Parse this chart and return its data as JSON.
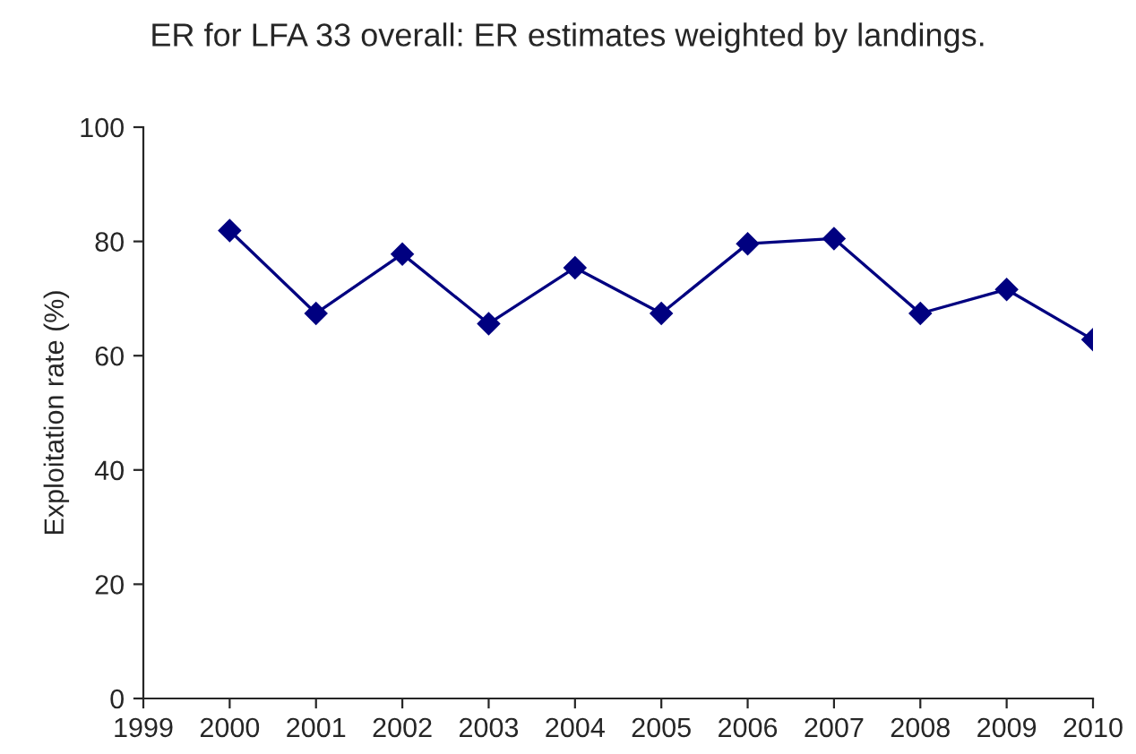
{
  "chart_data": {
    "type": "line",
    "title": "ER for LFA 33 overall: ER estimates weighted by landings.",
    "ylabel": "Exploitation rate (%)",
    "x": [
      2000,
      2001,
      2002,
      2003,
      2004,
      2005,
      2006,
      2007,
      2008,
      2009,
      2010
    ],
    "series": [
      {
        "color": "#000080",
        "values": [
          81.9,
          67.4,
          77.8,
          65.6,
          75.4,
          67.4,
          79.6,
          80.5,
          67.4,
          71.6,
          62.8
        ]
      }
    ],
    "xlim": [
      1999,
      2010
    ],
    "xticks": [
      1999,
      2000,
      2001,
      2002,
      2003,
      2004,
      2005,
      2006,
      2007,
      2008,
      2009,
      2010
    ],
    "ylim": [
      0,
      100
    ],
    "yticks": [
      0,
      20,
      40,
      60,
      80,
      100
    ],
    "grid": false,
    "legend": false,
    "marker": "diamond",
    "line_style": "solid"
  }
}
